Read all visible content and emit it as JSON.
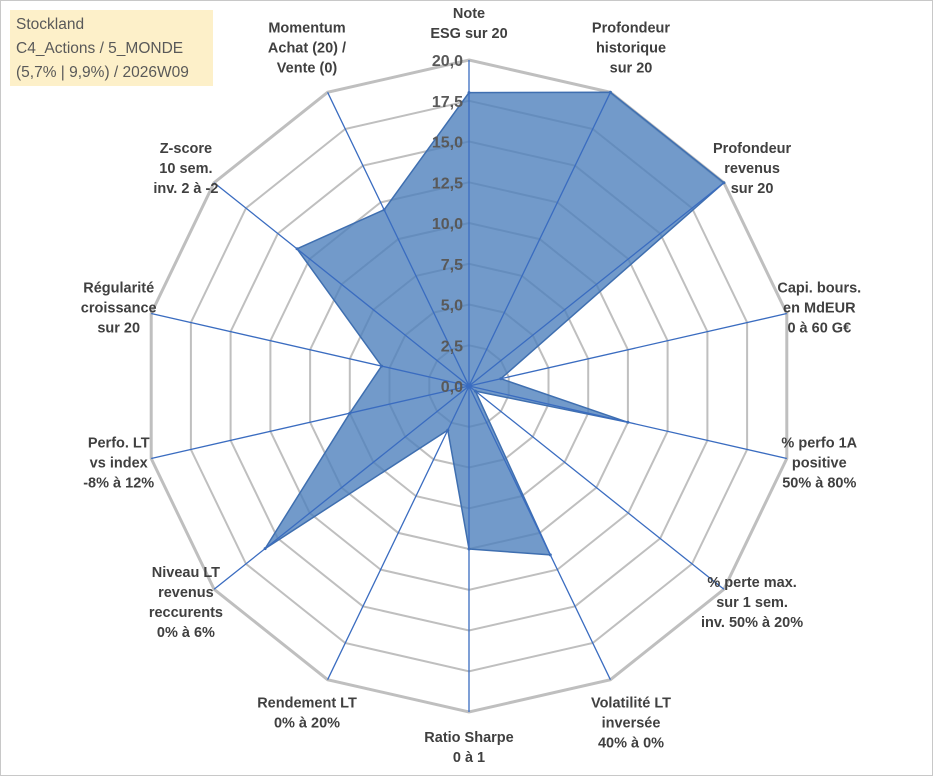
{
  "info": {
    "line1": "Stockland",
    "line2": "C4_Actions / 5_MONDE",
    "line3": "(5,7% | 9,9%) / 2026W09"
  },
  "colors": {
    "fill": "#4f81bd",
    "stroke": "#3f6fb0",
    "grid": "#bfbfbf",
    "spoke": "#3a6cc0",
    "info_bg": "#fdf0c9"
  },
  "chart_data": {
    "type": "radar",
    "title": "",
    "rmin": 0,
    "rmax": 20,
    "ticks": [
      "0,0",
      "2,5",
      "5,0",
      "7,5",
      "10,0",
      "12,5",
      "15,0",
      "17,5",
      "20,0"
    ],
    "grid": true,
    "categories": [
      [
        "Note",
        "ESG sur 20"
      ],
      [
        "Profondeur",
        "historique",
        "sur 20"
      ],
      [
        "Profondeur",
        "revenus",
        "sur 20"
      ],
      [
        "Capi. bours.",
        "en MdEUR",
        "0 à 60 G€"
      ],
      [
        "% perfo 1A",
        "positive",
        "50% à 80%"
      ],
      [
        "% perte max.",
        "sur 1 sem.",
        "inv. 50% à 20%"
      ],
      [
        "Volatilité LT",
        "inversée",
        "40% à 0%"
      ],
      [
        "Ratio Sharpe",
        "0 à 1"
      ],
      [
        "Rendement LT",
        "0% à 20%"
      ],
      [
        "Niveau LT",
        "revenus",
        "reccurents",
        "0% à 6%"
      ],
      [
        "Perfo. LT",
        "vs index",
        "-8% à 12%"
      ],
      [
        "Régularité",
        "croissance",
        "sur 20"
      ],
      [
        "Z-score",
        "10 sem.",
        "inv. 2 à -2"
      ],
      [
        "Momentum",
        "Achat (20) /",
        "Vente (0)"
      ]
    ],
    "values": [
      18,
      20,
      20,
      2,
      10,
      0.5,
      11.5,
      10,
      3,
      16,
      7.5,
      5.5,
      13.5,
      12
    ]
  }
}
